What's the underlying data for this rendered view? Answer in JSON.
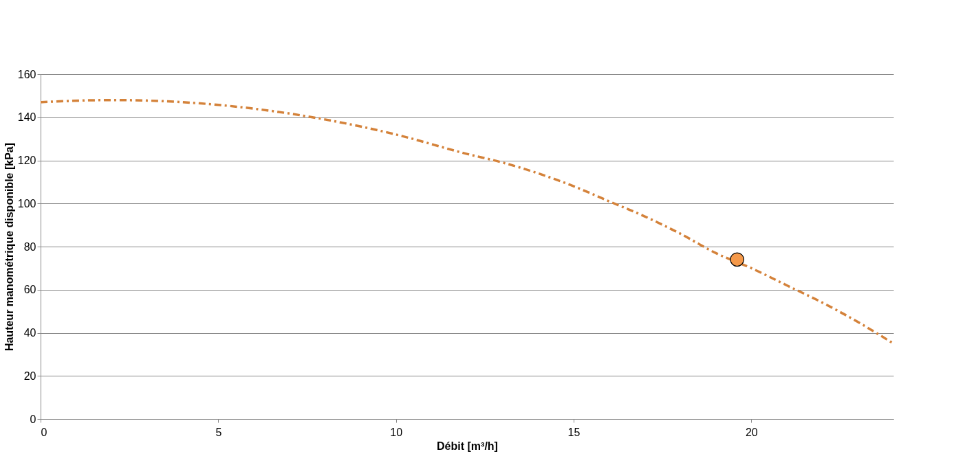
{
  "chart_data": {
    "type": "line",
    "xlabel": "Débit [m³/h]",
    "ylabel": "Hauteur manométrique disponible [kPa]",
    "xlim": [
      0,
      24
    ],
    "xticks": [
      0,
      5,
      10,
      15,
      20
    ],
    "ylim": [
      0,
      160
    ],
    "yticks": [
      0,
      20,
      40,
      60,
      80,
      100,
      120,
      140,
      160
    ],
    "grid": "y",
    "series": [
      {
        "color": "#d4823a",
        "line_style": "dashed",
        "marker": "none",
        "x": [
          0,
          2,
          4,
          6,
          8,
          10,
          12,
          13,
          14,
          15,
          16,
          17,
          18,
          19,
          20,
          21,
          22,
          23,
          24
        ],
        "values": [
          147,
          148,
          147,
          144,
          139,
          132,
          123,
          119,
          114,
          108,
          101,
          94,
          86,
          77,
          70,
          62,
          54,
          45,
          35
        ]
      },
      {
        "type": "scatter",
        "color": "#f5994a",
        "marker": "circle",
        "x": [
          19.6
        ],
        "values": [
          74
        ]
      }
    ]
  }
}
